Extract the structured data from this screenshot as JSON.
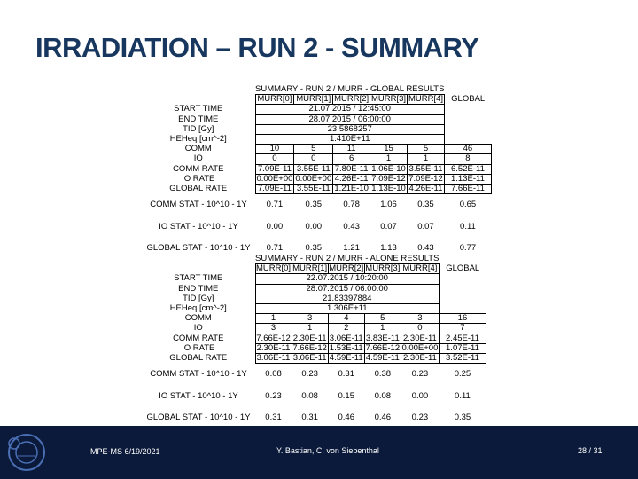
{
  "title": "IRRADIATION – RUN 2 - SUMMARY",
  "colors": {
    "title": "#17375e",
    "footer_bg": "#0b1a3a"
  },
  "tables": [
    {
      "heading": "SUMMARY - RUN 2 / MURR - GLOBAL RESULTS",
      "columns": [
        "MURR[0]",
        "MURR[1]",
        "MURR[2]",
        "MURR[3]",
        "MURR[4]",
        "GLOBAL"
      ],
      "span_rows": [
        {
          "label": "START TIME",
          "value": "21.07.2015 / 12:45:00"
        },
        {
          "label": "END TIME",
          "value": "28.07.2015 / 06:00:00"
        },
        {
          "label": "TID [Gy]",
          "value": "23.5868257"
        },
        {
          "label": "HEHeq [cm^-2]",
          "value": "1.410E+11"
        }
      ],
      "data_rows": [
        {
          "label": "COMM",
          "values": [
            "10",
            "5",
            "11",
            "15",
            "5",
            "46"
          ]
        },
        {
          "label": "IO",
          "values": [
            "0",
            "0",
            "6",
            "1",
            "1",
            "8"
          ]
        },
        {
          "label": "COMM RATE",
          "values": [
            "7.09E-11",
            "3.55E-11",
            "7.80E-11",
            "1.06E-10",
            "3.55E-11",
            "6.52E-11"
          ]
        },
        {
          "label": "IO RATE",
          "values": [
            "0.00E+00",
            "0.00E+00",
            "4.26E-11",
            "7.09E-12",
            "7.09E-12",
            "1.13E-11"
          ]
        },
        {
          "label": "GLOBAL RATE",
          "values": [
            "7.09E-11",
            "3.55E-11",
            "1.21E-10",
            "1.13E-10",
            "4.26E-11",
            "7.66E-11"
          ]
        }
      ],
      "stat_rows": [
        {
          "label": "COMM STAT - 10^10 - 1Y",
          "values": [
            "0.71",
            "0.35",
            "0.78",
            "1.06",
            "0.35",
            "0.65"
          ]
        },
        {
          "label": "IO STAT - 10^10 - 1Y",
          "values": [
            "0.00",
            "0.00",
            "0.43",
            "0.07",
            "0.07",
            "0.11"
          ]
        },
        {
          "label": "GLOBAL STAT - 10^10 - 1Y",
          "values": [
            "0.71",
            "0.35",
            "1.21",
            "1.13",
            "0.43",
            "0.77"
          ]
        }
      ]
    },
    {
      "heading": "SUMMARY - RUN 2 / MURR - ALONE RESULTS",
      "columns": [
        "MURR[0]",
        "MURR[1]",
        "MURR[2]",
        "MURR[3]",
        "MURR[4]",
        "GLOBAL"
      ],
      "span_rows": [
        {
          "label": "START TIME",
          "value": "22.07.2015 / 10:20:00"
        },
        {
          "label": "END TIME",
          "value": "28.07.2015 / 06:00:00"
        },
        {
          "label": "TID [Gy]",
          "value": "21.83397884"
        },
        {
          "label": "HEHeq [cm^-2]",
          "value": "1.306E+11"
        }
      ],
      "data_rows": [
        {
          "label": "COMM",
          "values": [
            "1",
            "3",
            "4",
            "5",
            "3",
            "16"
          ]
        },
        {
          "label": "IO",
          "values": [
            "3",
            "1",
            "2",
            "1",
            "0",
            "7"
          ]
        },
        {
          "label": "COMM RATE",
          "values": [
            "7.66E-12",
            "2.30E-11",
            "3.06E-11",
            "3.83E-11",
            "2.30E-11",
            "2.45E-11"
          ]
        },
        {
          "label": "IO RATE",
          "values": [
            "2.30E-11",
            "7.66E-12",
            "1.53E-11",
            "7.66E-12",
            "0.00E+00",
            "1.07E-11"
          ]
        },
        {
          "label": "GLOBAL RATE",
          "values": [
            "3.06E-11",
            "3.06E-11",
            "4.59E-11",
            "4.59E-11",
            "2.30E-11",
            "3.52E-11"
          ]
        }
      ],
      "stat_rows": [
        {
          "label": "COMM STAT - 10^10 - 1Y",
          "values": [
            "0.08",
            "0.23",
            "0.31",
            "0.38",
            "0.23",
            "0.25"
          ]
        },
        {
          "label": "IO STAT - 10^10 - 1Y",
          "values": [
            "0.23",
            "0.08",
            "0.15",
            "0.08",
            "0.00",
            "0.11"
          ]
        },
        {
          "label": "GLOBAL STAT - 10^10 - 1Y",
          "values": [
            "0.31",
            "0.31",
            "0.46",
            "0.46",
            "0.23",
            "0.35"
          ]
        }
      ]
    }
  ],
  "footer": {
    "left": "MPE-MS 6/19/2021",
    "center": "Y. Bastian, C. von Siebenthal",
    "page": "28 / 31"
  }
}
